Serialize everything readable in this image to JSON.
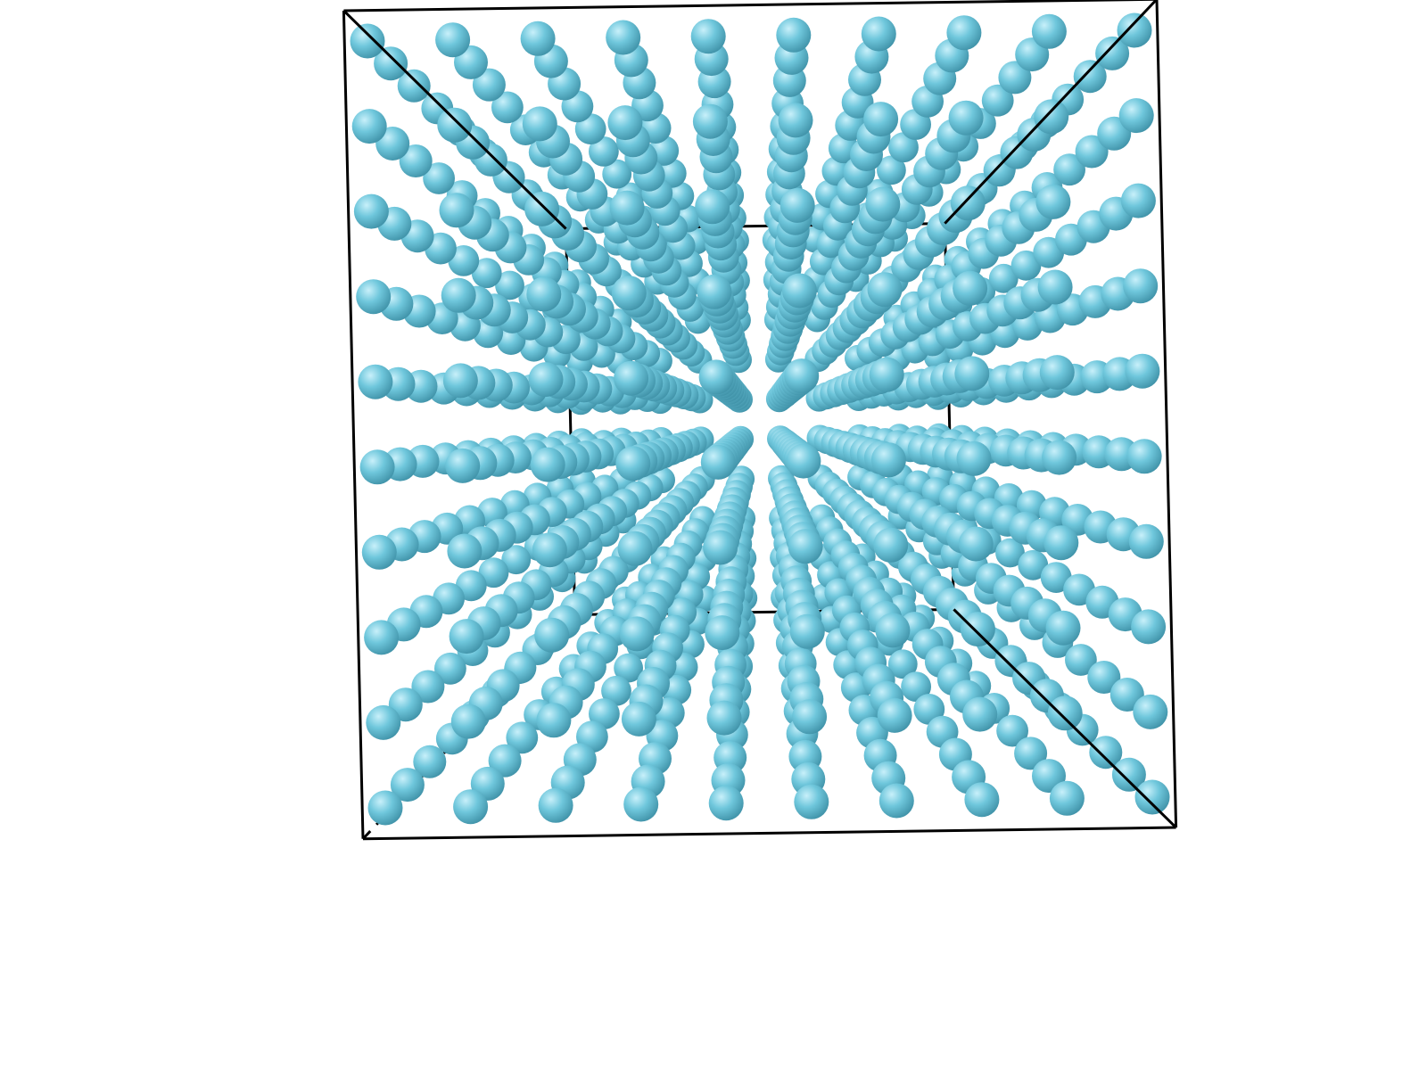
{
  "scene": {
    "kind": "simple-cubic-lattice",
    "atoms_per_edge": 10,
    "atom_color": "#6fc7dc",
    "atom_highlight": "#c8f0fa",
    "atom_shadow": "#3d8fa5",
    "frame_color": "#000000",
    "background": "#ffffff",
    "projection": "perspective",
    "hidden_edges": "dashed"
  }
}
